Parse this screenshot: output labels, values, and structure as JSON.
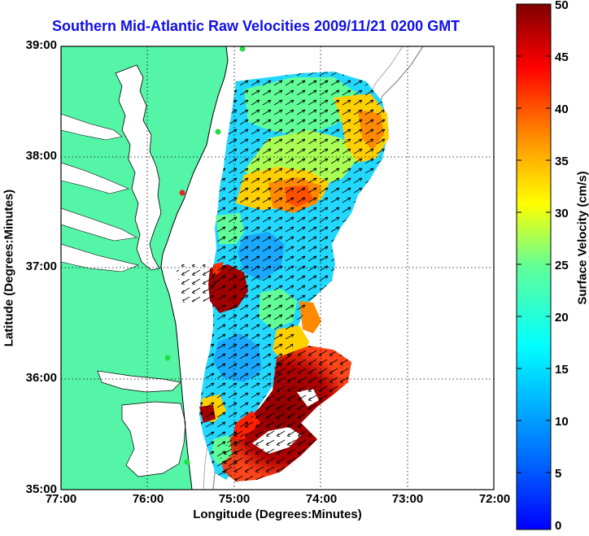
{
  "title": "Southern Mid-Atlantic Raw Velocities 2009/11/21 0200 GMT",
  "xlabel": "Longitude (Degrees:Minutes)",
  "ylabel": "Latitude (Degrees:Minutes)",
  "colorbar": {
    "label": "Surface Velocity (cm/s)",
    "ticks": [
      "0",
      "5",
      "10",
      "15",
      "20",
      "25",
      "30",
      "35",
      "40",
      "45",
      "50"
    ],
    "min": 0,
    "max": 50,
    "colormap": "jet"
  },
  "xticks": [
    "77:00",
    "76:00",
    "75:00",
    "74:00",
    "73:00",
    "72:00"
  ],
  "yticks": [
    "39:00",
    "38:00",
    "37:00",
    "36:00",
    "35:00"
  ],
  "colors": {
    "land": "#55f5a8",
    "title": "#1010e8",
    "ocean": "#ffffff",
    "sites": "#22dd44",
    "site_red": "#ee2222"
  }
}
